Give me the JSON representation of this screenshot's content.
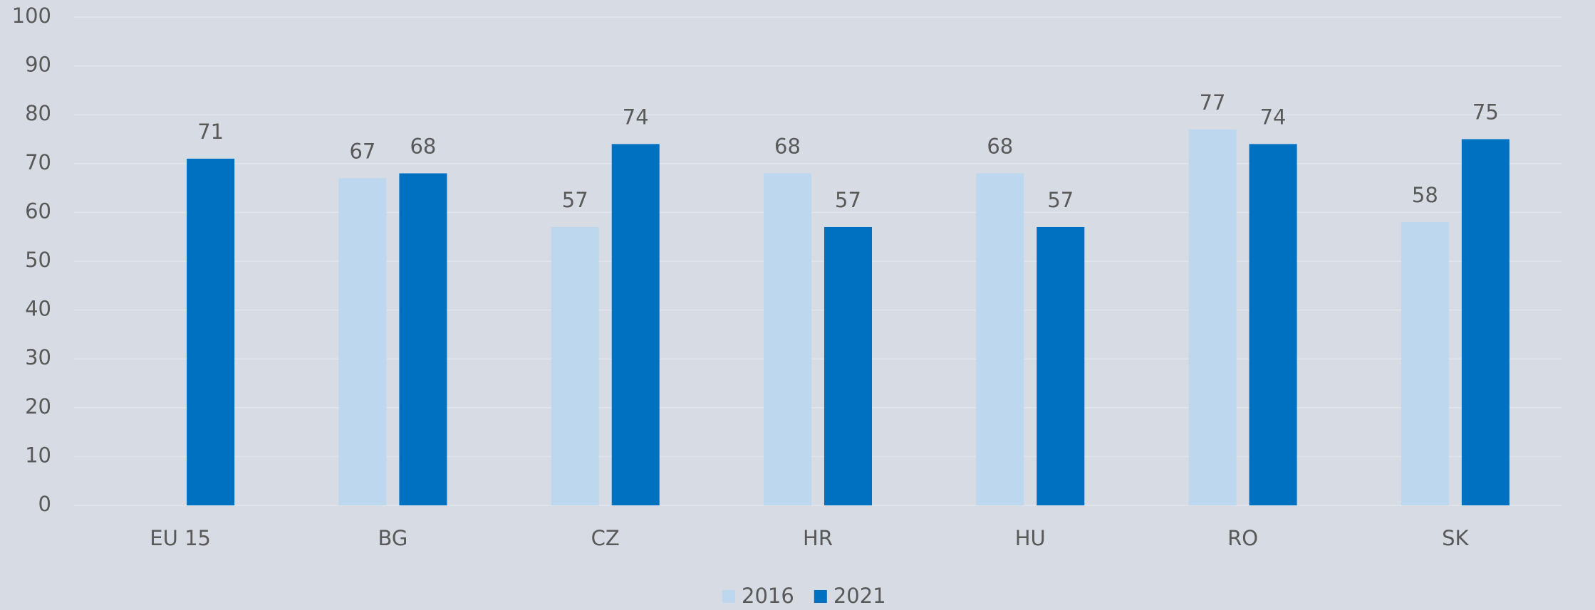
{
  "chart_data": {
    "type": "bar",
    "categories": [
      "EU 15",
      "BG",
      "CZ",
      "HR",
      "HU",
      "RO",
      "SK"
    ],
    "series": [
      {
        "name": "2016",
        "color": "#bdd7ee",
        "values": [
          null,
          67,
          57,
          68,
          68,
          77,
          58
        ]
      },
      {
        "name": "2021",
        "color": "#0070c0",
        "values": [
          71,
          68,
          74,
          57,
          57,
          74,
          75
        ]
      }
    ],
    "ylim": [
      0,
      100
    ],
    "yticks": [
      0,
      10,
      20,
      30,
      40,
      50,
      60,
      70,
      80,
      90,
      100
    ],
    "grid": true,
    "legend": "bottom"
  }
}
